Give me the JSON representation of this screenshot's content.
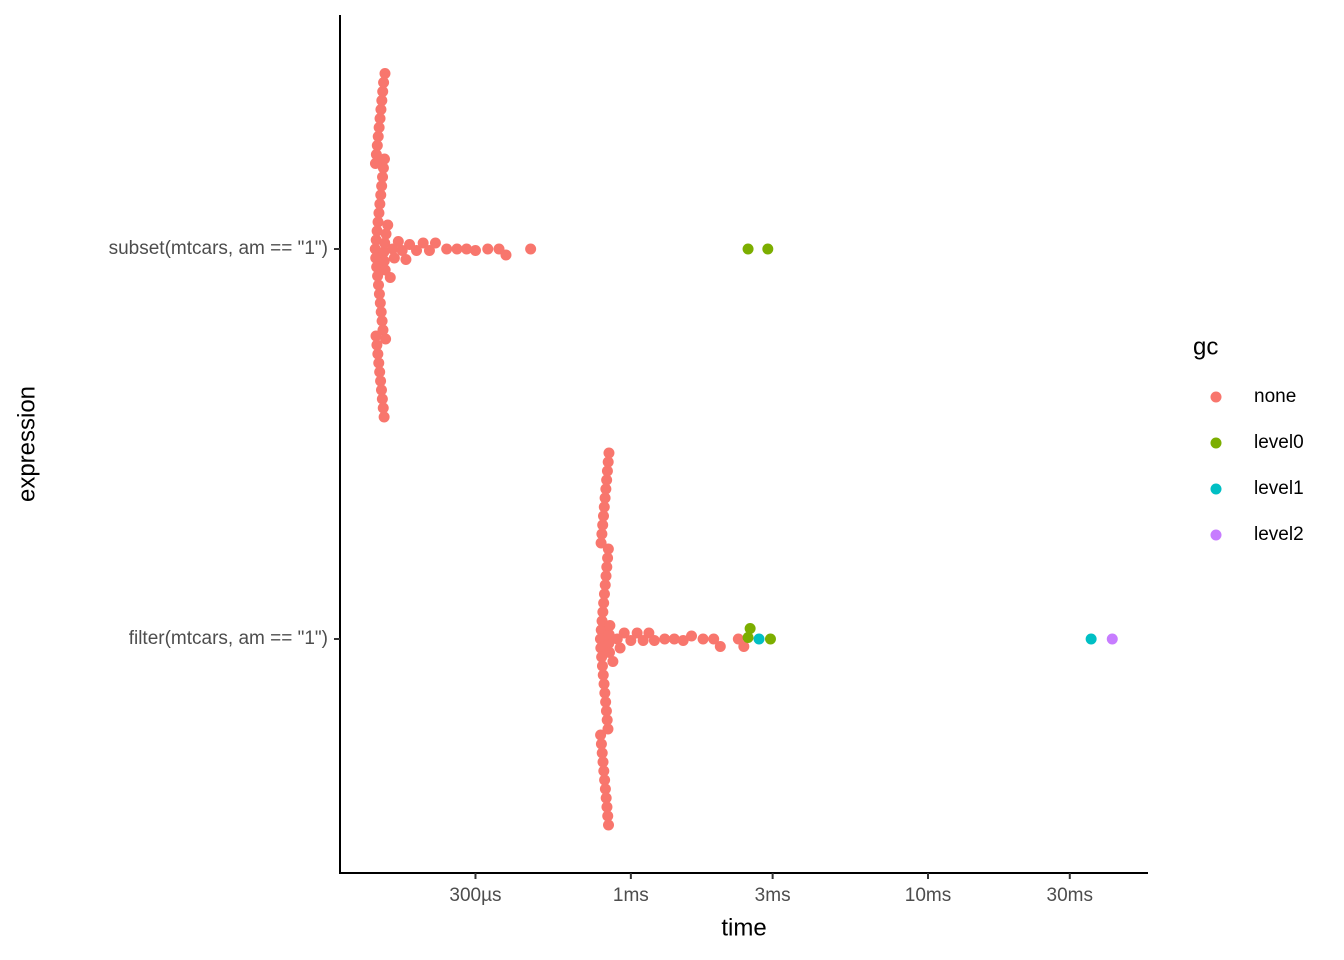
{
  "chart_data": {
    "type": "scatter",
    "x_label": "time",
    "y_label": "expression",
    "legend_title": "gc",
    "log_x": true,
    "categories": [
      "subset(mtcars, am == \"1\")",
      "filter(mtcars, am == \"1\")"
    ],
    "xlim": [
      0.105,
      55
    ],
    "xticks": [
      {
        "value": 0.3,
        "label": "300µs"
      },
      {
        "value": 1,
        "label": "1ms"
      },
      {
        "value": 3,
        "label": "3ms"
      },
      {
        "value": 10,
        "label": "10ms"
      },
      {
        "value": 30,
        "label": "30ms"
      }
    ],
    "series": [
      {
        "name": "none",
        "color": "#F8766D",
        "x": [
          0.138,
          0.1385,
          0.139,
          0.1395,
          0.14,
          0.1405,
          0.141,
          0.1415,
          0.142,
          0.1425,
          0.143,
          0.1435,
          0.144,
          0.1445,
          0.145,
          0.1455,
          0.146,
          0.1465,
          0.147,
          0.1475,
          0.148,
          0.1485,
          0.149,
          0.1495,
          0.15,
          0.1382,
          0.1388,
          0.1392,
          0.1398,
          0.1402,
          0.1408,
          0.1412,
          0.1418,
          0.1422,
          0.1428,
          0.1432,
          0.1438,
          0.1442,
          0.1448,
          0.1452,
          0.1458,
          0.1462,
          0.1468,
          0.1472,
          0.1478,
          0.1482,
          0.1488,
          0.152,
          0.155,
          0.158,
          0.16,
          0.165,
          0.17,
          0.175,
          0.18,
          0.19,
          0.2,
          0.21,
          0.22,
          0.24,
          0.26,
          0.28,
          0.3,
          0.33,
          0.36,
          0.38,
          0.46,
          0.79,
          0.7925,
          0.795,
          0.7975,
          0.8,
          0.8025,
          0.805,
          0.8075,
          0.81,
          0.8125,
          0.815,
          0.8175,
          0.82,
          0.8225,
          0.825,
          0.8275,
          0.83,
          0.8325,
          0.835,
          0.8375,
          0.84,
          0.8425,
          0.845,
          0.8475,
          0.85,
          0.791,
          0.794,
          0.796,
          0.799,
          0.801,
          0.804,
          0.806,
          0.809,
          0.811,
          0.814,
          0.816,
          0.819,
          0.821,
          0.824,
          0.826,
          0.829,
          0.831,
          0.834,
          0.836,
          0.839,
          0.841,
          0.844,
          0.87,
          0.9,
          0.92,
          0.95,
          1.0,
          1.05,
          1.1,
          1.15,
          1.2,
          1.3,
          1.4,
          1.5,
          1.6,
          1.75,
          1.9,
          2.0,
          2.3,
          2.4
        ],
        "category": [
          "subset(mtcars, am == \"1\")",
          "subset(mtcars, am == \"1\")",
          "subset(mtcars, am == \"1\")",
          "subset(mtcars, am == \"1\")",
          "subset(mtcars, am == \"1\")",
          "subset(mtcars, am == \"1\")",
          "subset(mtcars, am == \"1\")",
          "subset(mtcars, am == \"1\")",
          "subset(mtcars, am == \"1\")",
          "subset(mtcars, am == \"1\")",
          "subset(mtcars, am == \"1\")",
          "subset(mtcars, am == \"1\")",
          "subset(mtcars, am == \"1\")",
          "subset(mtcars, am == \"1\")",
          "subset(mtcars, am == \"1\")",
          "subset(mtcars, am == \"1\")",
          "subset(mtcars, am == \"1\")",
          "subset(mtcars, am == \"1\")",
          "subset(mtcars, am == \"1\")",
          "subset(mtcars, am == \"1\")",
          "subset(mtcars, am == \"1\")",
          "subset(mtcars, am == \"1\")",
          "subset(mtcars, am == \"1\")",
          "subset(mtcars, am == \"1\")",
          "subset(mtcars, am == \"1\")",
          "subset(mtcars, am == \"1\")",
          "subset(mtcars, am == \"1\")",
          "subset(mtcars, am == \"1\")",
          "subset(mtcars, am == \"1\")",
          "subset(mtcars, am == \"1\")",
          "subset(mtcars, am == \"1\")",
          "subset(mtcars, am == \"1\")",
          "subset(mtcars, am == \"1\")",
          "subset(mtcars, am == \"1\")",
          "subset(mtcars, am == \"1\")",
          "subset(mtcars, am == \"1\")",
          "subset(mtcars, am == \"1\")",
          "subset(mtcars, am == \"1\")",
          "subset(mtcars, am == \"1\")",
          "subset(mtcars, am == \"1\")",
          "subset(mtcars, am == \"1\")",
          "subset(mtcars, am == \"1\")",
          "subset(mtcars, am == \"1\")",
          "subset(mtcars, am == \"1\")",
          "subset(mtcars, am == \"1\")",
          "subset(mtcars, am == \"1\")",
          "subset(mtcars, am == \"1\")",
          "subset(mtcars, am == \"1\")",
          "subset(mtcars, am == \"1\")",
          "subset(mtcars, am == \"1\")",
          "subset(mtcars, am == \"1\")",
          "subset(mtcars, am == \"1\")",
          "subset(mtcars, am == \"1\")",
          "subset(mtcars, am == \"1\")",
          "subset(mtcars, am == \"1\")",
          "subset(mtcars, am == \"1\")",
          "subset(mtcars, am == \"1\")",
          "subset(mtcars, am == \"1\")",
          "subset(mtcars, am == \"1\")",
          "subset(mtcars, am == \"1\")",
          "subset(mtcars, am == \"1\")",
          "subset(mtcars, am == \"1\")",
          "subset(mtcars, am == \"1\")",
          "subset(mtcars, am == \"1\")",
          "subset(mtcars, am == \"1\")",
          "subset(mtcars, am == \"1\")",
          "subset(mtcars, am == \"1\")",
          "filter(mtcars, am == \"1\")",
          "filter(mtcars, am == \"1\")",
          "filter(mtcars, am == \"1\")",
          "filter(mtcars, am == \"1\")",
          "filter(mtcars, am == \"1\")",
          "filter(mtcars, am == \"1\")",
          "filter(mtcars, am == \"1\")",
          "filter(mtcars, am == \"1\")",
          "filter(mtcars, am == \"1\")",
          "filter(mtcars, am == \"1\")",
          "filter(mtcars, am == \"1\")",
          "filter(mtcars, am == \"1\")",
          "filter(mtcars, am == \"1\")",
          "filter(mtcars, am == \"1\")",
          "filter(mtcars, am == \"1\")",
          "filter(mtcars, am == \"1\")",
          "filter(mtcars, am == \"1\")",
          "filter(mtcars, am == \"1\")",
          "filter(mtcars, am == \"1\")",
          "filter(mtcars, am == \"1\")",
          "filter(mtcars, am == \"1\")",
          "filter(mtcars, am == \"1\")",
          "filter(mtcars, am == \"1\")",
          "filter(mtcars, am == \"1\")",
          "filter(mtcars, am == \"1\")",
          "filter(mtcars, am == \"1\")",
          "filter(mtcars, am == \"1\")",
          "filter(mtcars, am == \"1\")",
          "filter(mtcars, am == \"1\")",
          "filter(mtcars, am == \"1\")",
          "filter(mtcars, am == \"1\")",
          "filter(mtcars, am == \"1\")",
          "filter(mtcars, am == \"1\")",
          "filter(mtcars, am == \"1\")",
          "filter(mtcars, am == \"1\")",
          "filter(mtcars, am == \"1\")",
          "filter(mtcars, am == \"1\")",
          "filter(mtcars, am == \"1\")",
          "filter(mtcars, am == \"1\")",
          "filter(mtcars, am == \"1\")",
          "filter(mtcars, am == \"1\")",
          "filter(mtcars, am == \"1\")",
          "filter(mtcars, am == \"1\")",
          "filter(mtcars, am == \"1\")",
          "filter(mtcars, am == \"1\")",
          "filter(mtcars, am == \"1\")",
          "filter(mtcars, am == \"1\")",
          "filter(mtcars, am == \"1\")",
          "filter(mtcars, am == \"1\")",
          "filter(mtcars, am == \"1\")",
          "filter(mtcars, am == \"1\")",
          "filter(mtcars, am == \"1\")",
          "filter(mtcars, am == \"1\")",
          "filter(mtcars, am == \"1\")",
          "filter(mtcars, am == \"1\")",
          "filter(mtcars, am == \"1\")",
          "filter(mtcars, am == \"1\")",
          "filter(mtcars, am == \"1\")",
          "filter(mtcars, am == \"1\")",
          "filter(mtcars, am == \"1\")",
          "filter(mtcars, am == \"1\")",
          "filter(mtcars, am == \"1\")",
          "filter(mtcars, am == \"1\")",
          "filter(mtcars, am == \"1\")",
          "filter(mtcars, am == \"1\")"
        ]
      },
      {
        "name": "level0",
        "color": "#7CAE00",
        "x": [
          2.48,
          2.89,
          2.48,
          2.52,
          2.95
        ],
        "category": [
          "subset(mtcars, am == \"1\")",
          "subset(mtcars, am == \"1\")",
          "filter(mtcars, am == \"1\")",
          "filter(mtcars, am == \"1\")",
          "filter(mtcars, am == \"1\")"
        ]
      },
      {
        "name": "level1",
        "color": "#00BFC4",
        "x": [
          2.7,
          35.4
        ],
        "category": [
          "filter(mtcars, am == \"1\")",
          "filter(mtcars, am == \"1\")"
        ]
      },
      {
        "name": "level2",
        "color": "#C77CFF",
        "x": [
          41.7
        ],
        "category": [
          "filter(mtcars, am == \"1\")"
        ]
      }
    ]
  }
}
